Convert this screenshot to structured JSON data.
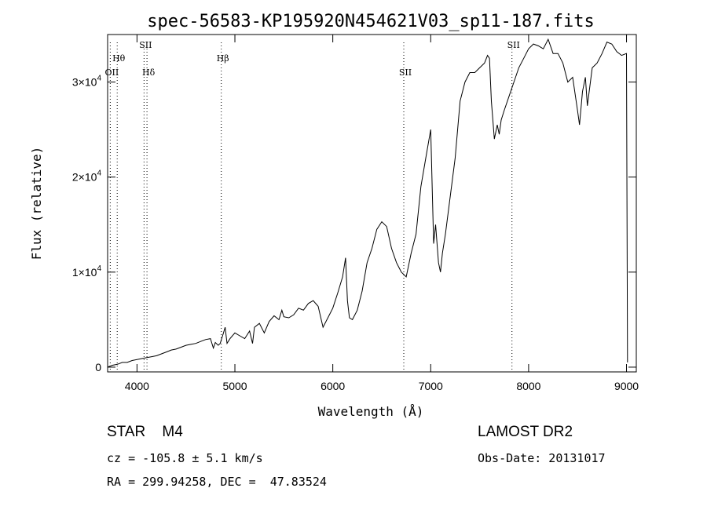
{
  "chart_data": {
    "type": "line",
    "title": "spec-56583-KP195920N454621V03_sp11-187.fits",
    "xlabel": "Wavelength (Å)",
    "ylabel": "Flux (relative)",
    "xlim": [
      3700,
      9100
    ],
    "ylim": [
      -500,
      35000
    ],
    "xticks": [
      {
        "value": 4000,
        "label": "4000"
      },
      {
        "value": 5000,
        "label": "5000"
      },
      {
        "value": 6000,
        "label": "6000"
      },
      {
        "value": 7000,
        "label": "7000"
      },
      {
        "value": 8000,
        "label": "8000"
      },
      {
        "value": 9000,
        "label": "9000"
      }
    ],
    "yticks": [
      {
        "value": 0,
        "label": "0",
        "exp": ""
      },
      {
        "value": 10000,
        "label": "1×10",
        "exp": "4"
      },
      {
        "value": 20000,
        "label": "2×10",
        "exp": "4"
      },
      {
        "value": 30000,
        "label": "3×10",
        "exp": "4"
      }
    ],
    "lines": [
      {
        "label": "Hθ",
        "x": 3798,
        "row": 1
      },
      {
        "label": "OII",
        "x": 3727,
        "row": 2
      },
      {
        "label": "SII",
        "x": 4072,
        "row": 0
      },
      {
        "label": "Hδ",
        "x": 4102,
        "row": 2
      },
      {
        "label": "Hβ",
        "x": 4861,
        "row": 1
      },
      {
        "label": "SII",
        "x": 6725,
        "row": 2
      },
      {
        "label": "SII",
        "x": 7830,
        "row": 0
      }
    ],
    "series": [
      {
        "x": [
          3700,
          3750,
          3800,
          3850,
          3900,
          3950,
          4000,
          4050,
          4100,
          4150,
          4200,
          4250,
          4300,
          4350,
          4400,
          4450,
          4500,
          4550,
          4600,
          4650,
          4700,
          4750,
          4780,
          4800,
          4830,
          4850,
          4880,
          4900,
          4920,
          4950,
          5000,
          5050,
          5100,
          5150,
          5180,
          5200,
          5250,
          5300,
          5350,
          5400,
          5450,
          5480,
          5500,
          5550,
          5600,
          5650,
          5700,
          5750,
          5800,
          5850,
          5900,
          5950,
          6000,
          6050,
          6100,
          6130,
          6150,
          6170,
          6200,
          6250,
          6300,
          6350,
          6400,
          6450,
          6500,
          6550,
          6600,
          6650,
          6700,
          6750,
          6800,
          6850,
          6900,
          6950,
          7000,
          7030,
          7050,
          7080,
          7100,
          7120,
          7150,
          7200,
          7250,
          7300,
          7350,
          7400,
          7450,
          7500,
          7550,
          7580,
          7600,
          7620,
          7650,
          7680,
          7700,
          7720,
          7750,
          7800,
          7850,
          7900,
          7950,
          8000,
          8050,
          8100,
          8150,
          8200,
          8250,
          8300,
          8350,
          8400,
          8450,
          8500,
          8520,
          8550,
          8580,
          8600,
          8650,
          8700,
          8750,
          8800,
          8850,
          8900,
          8950,
          9000,
          9010
        ],
        "y": [
          0,
          200,
          300,
          500,
          500,
          700,
          800,
          900,
          1000,
          1100,
          1200,
          1400,
          1600,
          1800,
          1900,
          2100,
          2300,
          2400,
          2500,
          2700,
          2900,
          3000,
          2000,
          2600,
          2300,
          2500,
          3500,
          4200,
          2500,
          3000,
          3600,
          3300,
          3000,
          3800,
          2500,
          4200,
          4600,
          3600,
          4800,
          5400,
          5000,
          6000,
          5300,
          5200,
          5500,
          6200,
          6000,
          6700,
          7000,
          6400,
          4200,
          5200,
          6200,
          7800,
          9500,
          11500,
          7000,
          5200,
          5000,
          6000,
          8000,
          11000,
          12500,
          14500,
          15300,
          14800,
          12500,
          11000,
          10000,
          9500,
          12000,
          14000,
          19000,
          22000,
          25000,
          13000,
          15000,
          11000,
          10000,
          12000,
          14000,
          18000,
          22000,
          28000,
          30000,
          31000,
          31000,
          31500,
          32000,
          32800,
          32500,
          28000,
          24000,
          25500,
          24500,
          26000,
          27000,
          28500,
          30000,
          31500,
          32500,
          33500,
          34000,
          33800,
          33500,
          34500,
          33000,
          33000,
          32000,
          30000,
          30500,
          27000,
          25500,
          29000,
          30500,
          27500,
          31500,
          32000,
          33000,
          34200,
          34000,
          33200,
          32800,
          33000,
          500
        ]
      }
    ]
  },
  "footer": {
    "object": "STAR    M4",
    "survey": "LAMOST DR2",
    "cz": "cz = -105.8 ± 5.1 km/s",
    "obsdate": "Obs-Date: 20131017",
    "radec": "RA = 299.94258, DEC =  47.83524"
  }
}
